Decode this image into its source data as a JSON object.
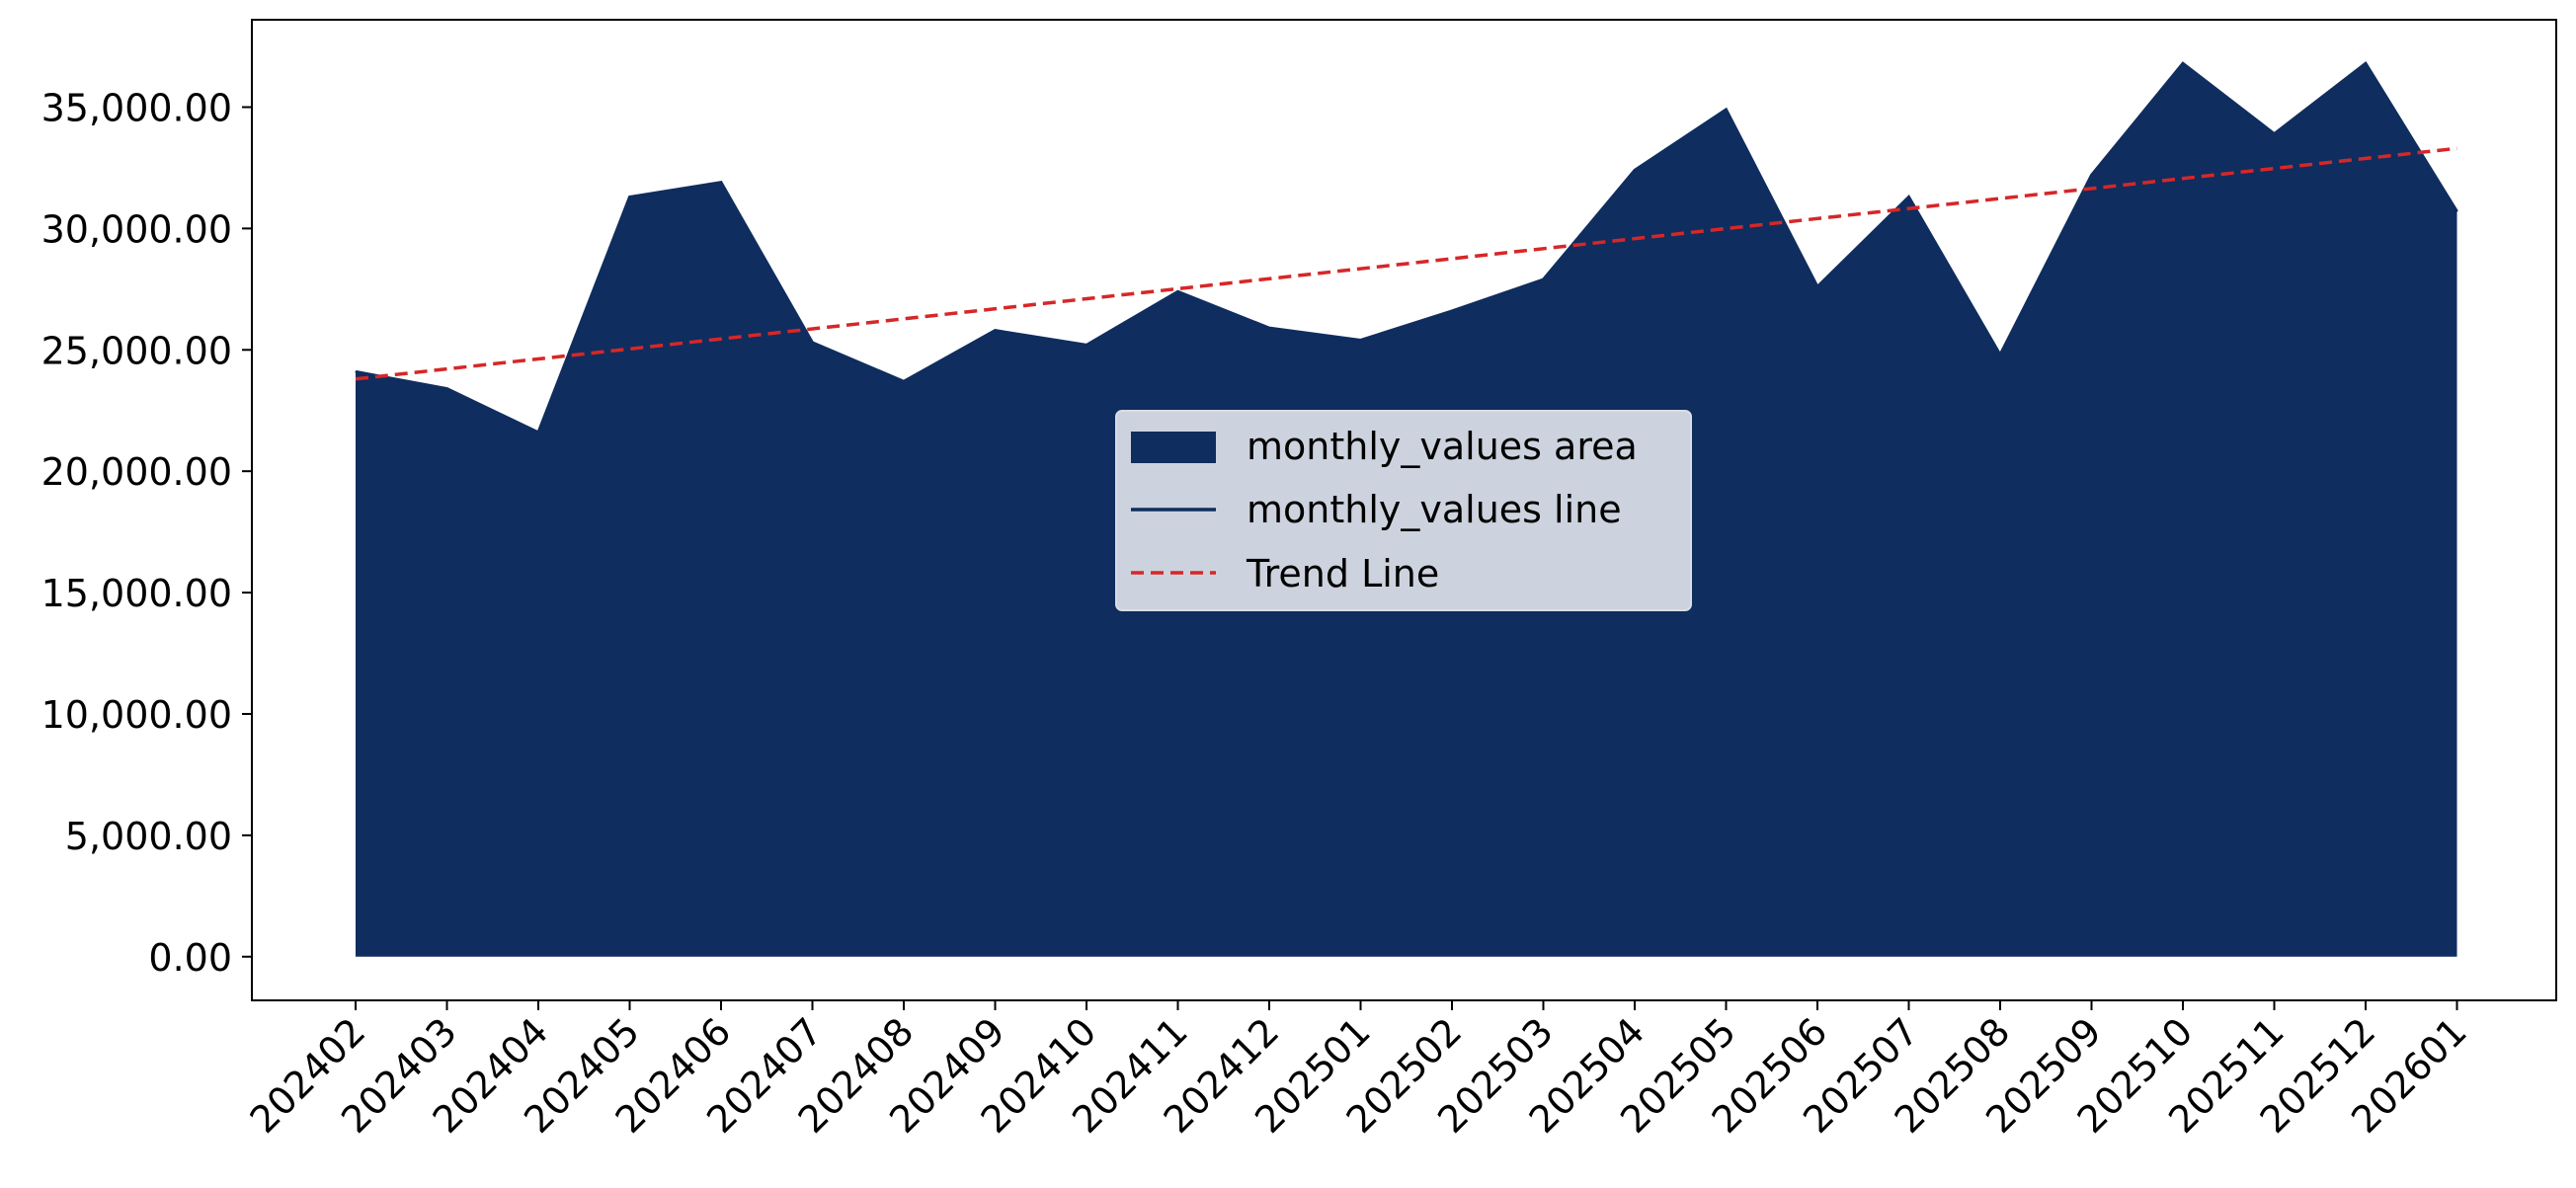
{
  "colors": {
    "area": "#0f2d5e",
    "line": "#0f2d5e",
    "trend": "#d62728",
    "legend_bg": "#ccd3de",
    "legend_border": "#d9dde5",
    "axis": "#000000"
  },
  "chart_data": {
    "type": "area",
    "title": "",
    "xlabel": "",
    "ylabel": "",
    "categories": [
      "202402",
      "202403",
      "202404",
      "202405",
      "202406",
      "202407",
      "202408",
      "202409",
      "202410",
      "202411",
      "202412",
      "202501",
      "202502",
      "202503",
      "202504",
      "202505",
      "202506",
      "202507",
      "202508",
      "202509",
      "202510",
      "202511",
      "202512",
      "202601"
    ],
    "series": [
      {
        "name": "monthly_values area",
        "values": [
          24100,
          23400,
          21600,
          31300,
          31900,
          25300,
          23700,
          25800,
          25200,
          27400,
          25900,
          25400,
          26600,
          27900,
          32400,
          34900,
          27600,
          31300,
          24800,
          32200,
          36800,
          33900,
          36800,
          30700
        ]
      }
    ],
    "trend_line": {
      "name": "Trend Line",
      "start": 23800,
      "end": 33300
    },
    "y_ticks": [
      "0.00",
      "5,000.00",
      "10,000.00",
      "15,000.00",
      "20,000.00",
      "25,000.00",
      "30,000.00",
      "35,000.00"
    ],
    "y_tick_values": [
      0,
      5000,
      10000,
      15000,
      20000,
      25000,
      30000,
      35000
    ],
    "ylim": [
      -1800,
      38600
    ],
    "legend": {
      "placement": "center",
      "entries": [
        "monthly_values area",
        "monthly_values line",
        "Trend Line"
      ]
    },
    "grid": false
  }
}
